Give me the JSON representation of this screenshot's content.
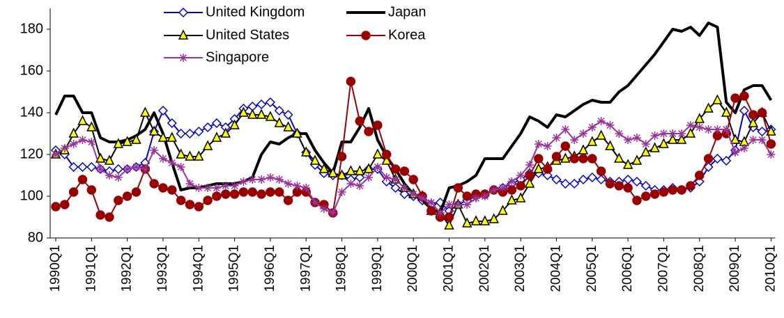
{
  "chart_data": {
    "type": "line",
    "categories": [
      "1990Q1",
      null,
      null,
      null,
      "1991Q1",
      null,
      null,
      null,
      "1992Q1",
      null,
      null,
      null,
      "1993Q1",
      null,
      null,
      null,
      "1994Q1",
      null,
      null,
      null,
      "1995Q1",
      null,
      null,
      null,
      "1996Q1",
      null,
      null,
      null,
      "1997Q1",
      null,
      null,
      null,
      "1998Q1",
      null,
      null,
      null,
      "1999Q1",
      null,
      null,
      null,
      "2000Q1",
      null,
      null,
      null,
      "2001Q1",
      null,
      null,
      null,
      "2002Q1",
      null,
      null,
      null,
      "2003Q1",
      null,
      null,
      null,
      "2004Q1",
      null,
      null,
      null,
      "2005Q1",
      null,
      null,
      null,
      "2006Q1",
      null,
      null,
      null,
      "2007Q1",
      null,
      null,
      null,
      "2008Q1",
      null,
      null,
      null,
      "2009Q1",
      null,
      null,
      null,
      "2010Q1"
    ],
    "series": [
      {
        "name": "United Kingdom",
        "color": "#0000cc",
        "marker": "diamond",
        "marker_fill": "#ffffff",
        "line_width": 2,
        "values": [
          122,
          120,
          114,
          114,
          114,
          113,
          112,
          113,
          113,
          114,
          116,
          131,
          141,
          135,
          130,
          130,
          131,
          133,
          135,
          133,
          137,
          142,
          143,
          144,
          145,
          141,
          139,
          130,
          121,
          115,
          111,
          110,
          110,
          108,
          109,
          113,
          113,
          107,
          104,
          101,
          100,
          98,
          96,
          97,
          93,
          96,
          98,
          100,
          101,
          103,
          104,
          106,
          108,
          111,
          111,
          110,
          108,
          106,
          106,
          108,
          109,
          108,
          107,
          107,
          108,
          107,
          105,
          103,
          103,
          104,
          103,
          104,
          107,
          114,
          118,
          117,
          122,
          141,
          133,
          131,
          132
        ]
      },
      {
        "name": "Japan",
        "color": "#000000",
        "marker": "none",
        "line_width": 4,
        "values": [
          139,
          148,
          148,
          140,
          140,
          128,
          126,
          126,
          127,
          129,
          132,
          140,
          130,
          116,
          103,
          104,
          104,
          105,
          106,
          106,
          106,
          107,
          109,
          120,
          126,
          125,
          128,
          130,
          130,
          122,
          116,
          111,
          126,
          126,
          133,
          142,
          127,
          119,
          113,
          106,
          101,
          98,
          94,
          92,
          104,
          105,
          107,
          110,
          118,
          118,
          118,
          124,
          130,
          138,
          136,
          133,
          139,
          138,
          141,
          144,
          146,
          145,
          145,
          150,
          153,
          158,
          163,
          168,
          174,
          180,
          179,
          181,
          177,
          183,
          181,
          145,
          140,
          151,
          153,
          153,
          146
        ]
      },
      {
        "name": "United States",
        "color": "#000000",
        "marker": "triangle",
        "marker_fill": "#ffff00",
        "line_width": 2,
        "values": [
          120,
          122,
          130,
          136,
          133,
          118,
          117,
          125,
          126,
          127,
          140,
          131,
          128,
          128,
          120,
          119,
          119,
          124,
          128,
          130,
          134,
          140,
          139,
          139,
          138,
          135,
          133,
          130,
          121,
          117,
          113,
          111,
          110,
          112,
          112,
          113,
          120,
          117,
          108,
          104,
          101,
          100,
          93,
          92,
          86,
          96,
          87,
          88,
          88,
          89,
          93,
          98,
          99,
          106,
          113,
          114,
          117,
          118,
          119,
          122,
          126,
          129,
          124,
          118,
          115,
          117,
          121,
          123,
          125,
          127,
          127,
          130,
          137,
          142,
          146,
          140,
          127,
          126,
          135,
          140,
          131
        ]
      },
      {
        "name": "Korea",
        "color": "#990000",
        "marker": "circle",
        "marker_fill": "#990000",
        "line_width": 2,
        "values": [
          95,
          96,
          102,
          108,
          103,
          91,
          90,
          98,
          100,
          102,
          113,
          106,
          104,
          103,
          98,
          96,
          95,
          98,
          100,
          101,
          101,
          102,
          102,
          101,
          102,
          102,
          98,
          102,
          102,
          97,
          96,
          92,
          119,
          155,
          136,
          131,
          134,
          120,
          113,
          112,
          108,
          100,
          93,
          90,
          90,
          104,
          100,
          101,
          101,
          103,
          102,
          103,
          105,
          110,
          118,
          113,
          119,
          124,
          118,
          118,
          118,
          112,
          106,
          105,
          104,
          98,
          100,
          101,
          102,
          103,
          103,
          105,
          110,
          118,
          129,
          130,
          147,
          148,
          139,
          140,
          125
        ]
      },
      {
        "name": "Singapore",
        "color": "#993399",
        "marker": "asterisk",
        "marker_fill": "none",
        "line_width": 2,
        "values": [
          120,
          123,
          125,
          127,
          126,
          113,
          110,
          109,
          113,
          114,
          113,
          122,
          118,
          116,
          114,
          106,
          104,
          104,
          104,
          105,
          105,
          107,
          108,
          108,
          109,
          108,
          106,
          105,
          104,
          97,
          94,
          92,
          102,
          106,
          105,
          109,
          114,
          109,
          108,
          104,
          101,
          99,
          97,
          92,
          96,
          96,
          96,
          99,
          100,
          103,
          104,
          107,
          110,
          115,
          125,
          124,
          128,
          132,
          127,
          130,
          133,
          136,
          134,
          130,
          127,
          128,
          125,
          129,
          130,
          130,
          130,
          134,
          133,
          132,
          132,
          132,
          121,
          123,
          127,
          127,
          120
        ]
      }
    ],
    "ylim": [
      80,
      190
    ],
    "yticks": [
      80,
      100,
      120,
      140,
      160,
      180
    ],
    "grid": false
  }
}
